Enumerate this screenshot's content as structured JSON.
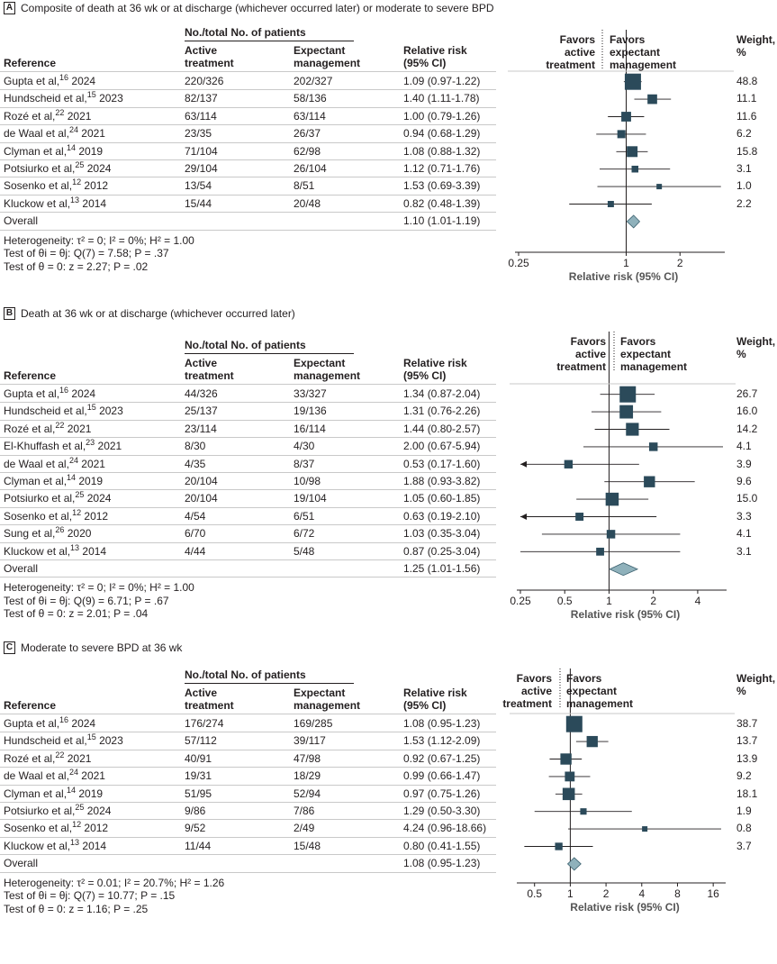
{
  "common": {
    "col_reference": "Reference",
    "col_group_header": "No./total No. of patients",
    "col_active": [
      "Active",
      "treatment"
    ],
    "col_expectant": [
      "Expectant",
      "management"
    ],
    "col_rr": [
      "Relative risk",
      "(95% CI)"
    ],
    "col_weight": [
      "Weight,",
      "%"
    ],
    "favors_active": [
      "Favors",
      "active",
      "treatment"
    ],
    "favors_expectant": [
      "Favors",
      "expectant",
      "management"
    ],
    "xlabel": "Relative risk (95% CI)",
    "overall_label": "Overall"
  },
  "panels": [
    {
      "letter": "A",
      "title": "Composite of death at 36 wk or at discharge (whichever occurred later) or moderate to severe BPD",
      "rows": [
        {
          "ref": "Gupta et al,",
          "sup": "16",
          "year": "2024",
          "active": "220/326",
          "expectant": "202/327",
          "rr_text": "1.09 (0.97-1.22)",
          "weight": "48.8"
        },
        {
          "ref": "Hundscheid et al,",
          "sup": "15",
          "year": "2023",
          "active": "82/137",
          "expectant": "58/136",
          "rr_text": "1.40 (1.11-1.78)",
          "weight": "11.1"
        },
        {
          "ref": "Rozé et al,",
          "sup": "22",
          "year": "2021",
          "active": "63/114",
          "expectant": "63/114",
          "rr_text": "1.00 (0.79-1.26)",
          "weight": "11.6"
        },
        {
          "ref": "de Waal et al,",
          "sup": "24",
          "year": "2021",
          "active": "23/35",
          "expectant": "26/37",
          "rr_text": "0.94 (0.68-1.29)",
          "weight": "6.2"
        },
        {
          "ref": "Clyman et al,",
          "sup": "14",
          "year": "2019",
          "active": "71/104",
          "expectant": "62/98",
          "rr_text": "1.08 (0.88-1.32)",
          "weight": "15.8"
        },
        {
          "ref": "Potsiurko et al,",
          "sup": "25",
          "year": "2024",
          "active": "29/104",
          "expectant": "26/104",
          "rr_text": "1.12 (0.71-1.76)",
          "weight": "3.1"
        },
        {
          "ref": "Sosenko et al,",
          "sup": "12",
          "year": "2012",
          "active": "13/54",
          "expectant": "8/51",
          "rr_text": "1.53 (0.69-3.39)",
          "weight": "1.0"
        },
        {
          "ref": "Kluckow et al,",
          "sup": "13",
          "year": "2014",
          "active": "15/44",
          "expectant": "20/48",
          "rr_text": "0.82 (0.48-1.39)",
          "weight": "2.2"
        }
      ],
      "overall_rr_text": "1.10 (1.01-1.19)",
      "stats": {
        "heterogeneity": "Heterogeneity: τ² = 0; I² = 0%; H² = 1.00",
        "theta_i": "Test of θi = θj: Q(7) = 7.58; P = .37",
        "theta_0": "Test of θ = 0: z = 2.27; P = .02"
      },
      "ticks": [
        "0.25",
        "1",
        "2"
      ]
    },
    {
      "letter": "B",
      "title": "Death at 36 wk or at discharge (whichever occurred later)",
      "rows": [
        {
          "ref": "Gupta et al,",
          "sup": "16",
          "year": "2024",
          "active": "44/326",
          "expectant": "33/327",
          "rr_text": "1.34 (0.87-2.04)",
          "weight": "26.7"
        },
        {
          "ref": "Hundscheid et al,",
          "sup": "15",
          "year": "2023",
          "active": "25/137",
          "expectant": "19/136",
          "rr_text": "1.31 (0.76-2.26)",
          "weight": "16.0"
        },
        {
          "ref": "Rozé et al,",
          "sup": "22",
          "year": "2021",
          "active": "23/114",
          "expectant": "16/114",
          "rr_text": "1.44 (0.80-2.57)",
          "weight": "14.2"
        },
        {
          "ref": "El-Khuffash et al,",
          "sup": "23",
          "year": "2021",
          "active": "8/30",
          "expectant": "4/30",
          "rr_text": "2.00 (0.67-5.94)",
          "weight": "4.1"
        },
        {
          "ref": "de Waal et al,",
          "sup": "24",
          "year": "2021",
          "active": "4/35",
          "expectant": "8/37",
          "rr_text": "0.53 (0.17-1.60)",
          "weight": "3.9"
        },
        {
          "ref": "Clyman et al,",
          "sup": "14",
          "year": "2019",
          "active": "20/104",
          "expectant": "10/98",
          "rr_text": "1.88 (0.93-3.82)",
          "weight": "9.6"
        },
        {
          "ref": "Potsiurko et al,",
          "sup": "25",
          "year": "2024",
          "active": "20/104",
          "expectant": "19/104",
          "rr_text": "1.05 (0.60-1.85)",
          "weight": "15.0"
        },
        {
          "ref": "Sosenko et al,",
          "sup": "12",
          "year": "2012",
          "active": "4/54",
          "expectant": "6/51",
          "rr_text": "0.63 (0.19-2.10)",
          "weight": "3.3"
        },
        {
          "ref": "Sung et al,",
          "sup": "26",
          "year": "2020",
          "active": "6/70",
          "expectant": "6/72",
          "rr_text": "1.03 (0.35-3.04)",
          "weight": "4.1"
        },
        {
          "ref": "Kluckow et al,",
          "sup": "13",
          "year": "2014",
          "active": "4/44",
          "expectant": "5/48",
          "rr_text": "0.87 (0.25-3.04)",
          "weight": "3.1"
        }
      ],
      "overall_rr_text": "1.25 (1.01-1.56)",
      "stats": {
        "heterogeneity": "Heterogeneity: τ² = 0; I² = 0%; H² = 1.00",
        "theta_i": "Test of θi = θj: Q(9) = 6.71; P = .67",
        "theta_0": "Test of θ = 0: z = 2.01; P = .04"
      },
      "ticks": [
        "0.25",
        "0.5",
        "1",
        "2",
        "4"
      ]
    },
    {
      "letter": "C",
      "title": "Moderate to severe BPD at 36 wk",
      "rows": [
        {
          "ref": "Gupta et al,",
          "sup": "16",
          "year": "2024",
          "active": "176/274",
          "expectant": "169/285",
          "rr_text": "1.08 (0.95-1.23)",
          "weight": "38.7"
        },
        {
          "ref": "Hundscheid et al,",
          "sup": "15",
          "year": "2023",
          "active": "57/112",
          "expectant": "39/117",
          "rr_text": "1.53 (1.12-2.09)",
          "weight": "13.7"
        },
        {
          "ref": "Rozé et al,",
          "sup": "22",
          "year": "2021",
          "active": "40/91",
          "expectant": "47/98",
          "rr_text": "0.92 (0.67-1.25)",
          "weight": "13.9"
        },
        {
          "ref": "de Waal et al,",
          "sup": "24",
          "year": "2021",
          "active": "19/31",
          "expectant": "18/29",
          "rr_text": "0.99 (0.66-1.47)",
          "weight": "9.2"
        },
        {
          "ref": "Clyman et al,",
          "sup": "14",
          "year": "2019",
          "active": "51/95",
          "expectant": "52/94",
          "rr_text": "0.97 (0.75-1.26)",
          "weight": "18.1"
        },
        {
          "ref": "Potsiurko et al,",
          "sup": "25",
          "year": "2024",
          "active": "9/86",
          "expectant": "7/86",
          "rr_text": "1.29 (0.50-3.30)",
          "weight": "1.9"
        },
        {
          "ref": "Sosenko et al,",
          "sup": "12",
          "year": "2012",
          "active": "9/52",
          "expectant": "2/49",
          "rr_text": "4.24 (0.96-18.66)",
          "weight": "0.8"
        },
        {
          "ref": "Kluckow et al,",
          "sup": "13",
          "year": "2014",
          "active": "11/44",
          "expectant": "15/48",
          "rr_text": "0.80 (0.41-1.55)",
          "weight": "3.7"
        }
      ],
      "overall_rr_text": "1.08 (0.95-1.23)",
      "stats": {
        "heterogeneity": "Heterogeneity: τ² = 0.01; I² = 20.7%; H² = 1.26",
        "theta_i": "Test of θi = θj: Q(7) = 10.77; P = .15",
        "theta_0": "Test of θ = 0: z = 1.16; P = .25"
      },
      "ticks": [
        "0.5",
        "1",
        "2",
        "4",
        "8",
        "16"
      ]
    }
  ],
  "chart_data": [
    {
      "type": "forest",
      "title": "Composite of death at 36 wk or at discharge (whichever occurred later) or moderate to severe BPD",
      "xlabel": "Relative risk (95% CI)",
      "xscale": "log",
      "xlim": [
        0.25,
        3.4
      ],
      "xticks": [
        0.25,
        1,
        2
      ],
      "studies": [
        "Gupta 2024",
        "Hundscheid 2023",
        "Rozé 2021",
        "de Waal 2021",
        "Clyman 2019",
        "Potsiurko 2024",
        "Sosenko 2012",
        "Kluckow 2014"
      ],
      "rr": [
        1.09,
        1.4,
        1.0,
        0.94,
        1.08,
        1.12,
        1.53,
        0.82
      ],
      "ci_low": [
        0.97,
        1.11,
        0.79,
        0.68,
        0.88,
        0.71,
        0.69,
        0.48
      ],
      "ci_high": [
        1.22,
        1.78,
        1.26,
        1.29,
        1.32,
        1.76,
        3.39,
        1.39
      ],
      "weights": [
        48.8,
        11.1,
        11.6,
        6.2,
        15.8,
        3.1,
        1.0,
        2.2
      ],
      "overall": {
        "rr": 1.1,
        "ci_low": 1.01,
        "ci_high": 1.19
      }
    },
    {
      "type": "forest",
      "title": "Death at 36 wk or at discharge (whichever occurred later)",
      "xlabel": "Relative risk (95% CI)",
      "xscale": "log",
      "xlim": [
        0.25,
        5.94
      ],
      "xticks": [
        0.25,
        0.5,
        1,
        2,
        4
      ],
      "studies": [
        "Gupta 2024",
        "Hundscheid 2023",
        "Rozé 2021",
        "El-Khuffash 2021",
        "de Waal 2021",
        "Clyman 2019",
        "Potsiurko 2024",
        "Sosenko 2012",
        "Sung 2020",
        "Kluckow 2014"
      ],
      "rr": [
        1.34,
        1.31,
        1.44,
        2.0,
        0.53,
        1.88,
        1.05,
        0.63,
        1.03,
        0.87
      ],
      "ci_low": [
        0.87,
        0.76,
        0.8,
        0.67,
        0.17,
        0.93,
        0.6,
        0.19,
        0.35,
        0.25
      ],
      "ci_high": [
        2.04,
        2.26,
        2.57,
        5.94,
        1.6,
        3.82,
        1.85,
        2.1,
        3.04,
        3.04
      ],
      "weights": [
        26.7,
        16.0,
        14.2,
        4.1,
        3.9,
        9.6,
        15.0,
        3.3,
        4.1,
        3.1
      ],
      "overall": {
        "rr": 1.25,
        "ci_low": 1.01,
        "ci_high": 1.56
      }
    },
    {
      "type": "forest",
      "title": "Moderate to severe BPD at 36 wk",
      "xlabel": "Relative risk (95% CI)",
      "xscale": "log",
      "xlim": [
        0.38,
        19
      ],
      "xticks": [
        0.5,
        1,
        2,
        4,
        8,
        16
      ],
      "studies": [
        "Gupta 2024",
        "Hundscheid 2023",
        "Rozé 2021",
        "de Waal 2021",
        "Clyman 2019",
        "Potsiurko 2024",
        "Sosenko 2012",
        "Kluckow 2014"
      ],
      "rr": [
        1.08,
        1.53,
        0.92,
        0.99,
        0.97,
        1.29,
        4.24,
        0.8
      ],
      "ci_low": [
        0.95,
        1.12,
        0.67,
        0.66,
        0.75,
        0.5,
        0.96,
        0.41
      ],
      "ci_high": [
        1.23,
        2.09,
        1.25,
        1.47,
        1.26,
        3.3,
        18.66,
        1.55
      ],
      "weights": [
        38.7,
        13.7,
        13.9,
        9.2,
        18.1,
        1.9,
        0.8,
        3.7
      ],
      "overall": {
        "rr": 1.08,
        "ci_low": 0.95,
        "ci_high": 1.23
      }
    }
  ],
  "colors": {
    "marker": "#2b4a5a",
    "diamond": "#8fb1bb",
    "diamond_stroke": "#3d6270",
    "text": "#231f20",
    "rule": "#c9c9c9"
  }
}
